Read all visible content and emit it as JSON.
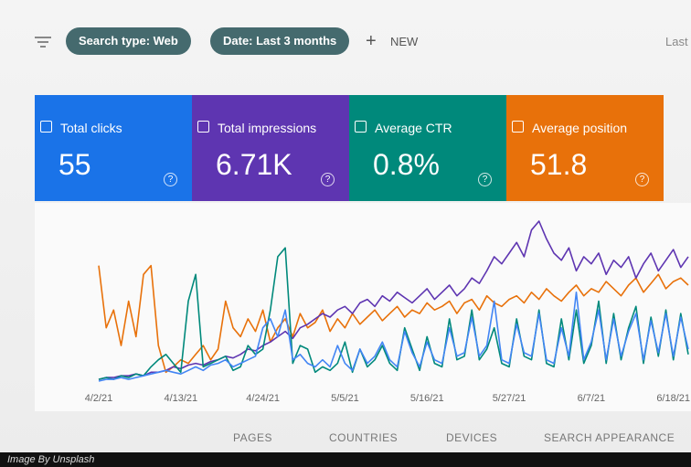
{
  "toolbar": {
    "chips": [
      "Search type: Web",
      "Date: Last 3 months"
    ],
    "new_button": "NEW",
    "right_text": "Last"
  },
  "cards": [
    {
      "label": "Total clicks",
      "value": "55",
      "color": "#1a73e8"
    },
    {
      "label": "Total impressions",
      "value": "6.71K",
      "color": "#5e35b1"
    },
    {
      "label": "Average CTR",
      "value": "0.8%",
      "color": "#00897b"
    },
    {
      "label": "Average position",
      "value": "51.8",
      "color": "#e8710a"
    }
  ],
  "chart_data": {
    "type": "line",
    "categories": [
      "4/2/21",
      null,
      null,
      null,
      null,
      null,
      null,
      null,
      null,
      null,
      null,
      "4/13/21",
      null,
      null,
      null,
      null,
      null,
      null,
      null,
      null,
      null,
      null,
      "4/24/21",
      null,
      null,
      null,
      null,
      null,
      null,
      null,
      null,
      null,
      null,
      "5/5/21",
      null,
      null,
      null,
      null,
      null,
      null,
      null,
      null,
      null,
      null,
      "5/16/21",
      null,
      null,
      null,
      null,
      null,
      null,
      null,
      null,
      null,
      null,
      "5/27/21",
      null,
      null,
      null,
      null,
      null,
      null,
      null,
      null,
      null,
      null,
      "6/7/21",
      null,
      null,
      null,
      null,
      null,
      null,
      null,
      null,
      null,
      null,
      "6/18/21",
      null,
      null
    ],
    "series": [
      {
        "color": "#e8710a",
        "values": [
          65,
          30,
          40,
          20,
          45,
          25,
          60,
          65,
          20,
          5,
          8,
          12,
          10,
          15,
          20,
          12,
          18,
          45,
          30,
          25,
          35,
          28,
          40,
          22,
          30,
          35,
          25,
          38,
          30,
          33,
          40,
          28,
          35,
          30,
          38,
          32,
          36,
          40,
          34,
          38,
          42,
          36,
          40,
          38,
          44,
          40,
          42,
          45,
          38,
          44,
          46,
          40,
          48,
          44,
          42,
          46,
          48,
          44,
          50,
          46,
          52,
          48,
          45,
          50,
          54,
          48,
          52,
          50,
          56,
          52,
          48,
          54,
          58,
          50,
          55,
          60,
          52,
          56,
          58,
          54
        ]
      },
      {
        "color": "#5e35b1",
        "values": [
          1,
          2,
          2,
          3,
          3,
          4,
          3,
          5,
          5,
          6,
          8,
          7,
          9,
          10,
          9,
          11,
          12,
          14,
          13,
          15,
          18,
          17,
          20,
          22,
          25,
          28,
          24,
          30,
          32,
          35,
          38,
          36,
          40,
          42,
          38,
          44,
          46,
          42,
          48,
          45,
          50,
          47,
          44,
          48,
          52,
          46,
          50,
          54,
          48,
          52,
          58,
          55,
          62,
          70,
          66,
          72,
          78,
          70,
          85,
          90,
          80,
          72,
          68,
          75,
          62,
          70,
          66,
          72,
          60,
          68,
          64,
          70,
          58,
          66,
          72,
          62,
          68,
          74,
          64,
          70
        ]
      },
      {
        "color": "#00897b",
        "values": [
          1,
          2,
          1,
          3,
          2,
          4,
          3,
          8,
          12,
          15,
          10,
          5,
          45,
          60,
          8,
          10,
          12,
          14,
          6,
          8,
          20,
          15,
          18,
          40,
          70,
          75,
          10,
          20,
          18,
          5,
          8,
          6,
          10,
          22,
          5,
          18,
          8,
          12,
          20,
          10,
          6,
          30,
          18,
          6,
          25,
          10,
          8,
          35,
          12,
          14,
          40,
          12,
          18,
          30,
          10,
          8,
          35,
          14,
          12,
          40,
          10,
          8,
          35,
          12,
          40,
          10,
          20,
          45,
          10,
          38,
          12,
          30,
          42,
          10,
          36,
          14,
          40,
          12,
          38,
          15
        ]
      },
      {
        "color": "#4285f4",
        "values": [
          0,
          1,
          1,
          2,
          1,
          2,
          3,
          4,
          5,
          6,
          5,
          4,
          6,
          8,
          6,
          9,
          10,
          12,
          8,
          10,
          12,
          14,
          30,
          35,
          25,
          40,
          12,
          15,
          10,
          8,
          12,
          8,
          20,
          10,
          6,
          18,
          10,
          14,
          22,
          12,
          8,
          28,
          16,
          8,
          22,
          12,
          10,
          30,
          14,
          16,
          36,
          14,
          20,
          45,
          12,
          10,
          32,
          16,
          14,
          38,
          12,
          10,
          30,
          14,
          50,
          12,
          22,
          40,
          12,
          35,
          14,
          28,
          38,
          12,
          34,
          16,
          38,
          14,
          36,
          18
        ]
      }
    ]
  },
  "tabs": [
    "PAGES",
    "COUNTRIES",
    "DEVICES",
    "SEARCH APPEARANCE"
  ],
  "caption": "Image By Unsplash"
}
